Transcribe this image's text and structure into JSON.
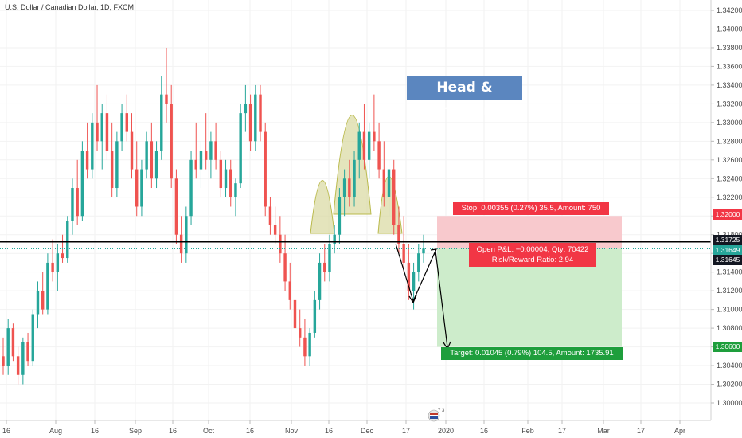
{
  "header": {
    "title": "U.S. Dollar / Canadian Dollar, 1D, FXCM"
  },
  "annotation": {
    "title": "Head & Sholders"
  },
  "position": {
    "stop_label": "Stop: 0.00355 (0.27%) 35.5, Amount: 750",
    "pnl_label_line1": "Open P&L: −0.00004, Qty: 70422",
    "pnl_label_line2": "Risk/Reward Ratio: 2.94",
    "target_label": "Target: 0.01045 (0.79%) 104.5, Amount: 1735.91"
  },
  "price_tags": {
    "stop": "1.32000",
    "level": "1.31725",
    "entry": "1.31649",
    "current": "1.31645",
    "target": "1.30600"
  },
  "colors": {
    "up": "#26a69a",
    "down": "#ef5350",
    "stop_zone": "#f8c9cd",
    "target_zone": "#cdeccb",
    "shoulder_fill": "#d8d9a0",
    "title_box": "#5b86bf"
  },
  "chart_data": {
    "type": "candlestick",
    "y_ticks": [
      "1.34200",
      "1.34000",
      "1.33800",
      "1.33600",
      "1.33400",
      "1.33200",
      "1.33000",
      "1.32800",
      "1.32600",
      "1.32400",
      "1.32200",
      "1.32000",
      "1.31800",
      "1.31600",
      "1.31400",
      "1.31200",
      "1.31000",
      "1.30800",
      "1.30600",
      "1.30400",
      "1.30200",
      "1.30000"
    ],
    "x_ticks": [
      "16",
      "Aug",
      "16",
      "Sep",
      "16",
      "Oct",
      "16",
      "Nov",
      "16",
      "Dec",
      "17",
      "2020",
      "16",
      "Feb",
      "17",
      "Mar",
      "17",
      "Apr"
    ],
    "ylim": [
      1.299,
      1.3425
    ],
    "levels": {
      "resistance": 1.31725,
      "entry": 1.31649,
      "stop": 1.32,
      "target": 1.306
    },
    "candles": [
      [
        1.305,
        1.307,
        1.303,
        1.304
      ],
      [
        1.304,
        1.309,
        1.303,
        1.308
      ],
      [
        1.308,
        1.3085,
        1.3045,
        1.305
      ],
      [
        1.305,
        1.306,
        1.302,
        1.303
      ],
      [
        1.303,
        1.307,
        1.302,
        1.3065
      ],
      [
        1.3065,
        1.3075,
        1.304,
        1.3045
      ],
      [
        1.3045,
        1.31,
        1.304,
        1.3095
      ],
      [
        1.3095,
        1.313,
        1.308,
        1.312
      ],
      [
        1.312,
        1.314,
        1.3095,
        1.31
      ],
      [
        1.31,
        1.316,
        1.3095,
        1.315
      ],
      [
        1.315,
        1.3175,
        1.313,
        1.314
      ],
      [
        1.314,
        1.317,
        1.312,
        1.316
      ],
      [
        1.316,
        1.318,
        1.315,
        1.3155
      ],
      [
        1.3155,
        1.32,
        1.315,
        1.3195
      ],
      [
        1.3195,
        1.324,
        1.318,
        1.323
      ],
      [
        1.323,
        1.326,
        1.319,
        1.32
      ],
      [
        1.32,
        1.328,
        1.3195,
        1.327
      ],
      [
        1.327,
        1.33,
        1.324,
        1.325
      ],
      [
        1.325,
        1.331,
        1.324,
        1.33
      ],
      [
        1.33,
        1.334,
        1.327,
        1.328
      ],
      [
        1.328,
        1.332,
        1.325,
        1.331
      ],
      [
        1.331,
        1.333,
        1.326,
        1.327
      ],
      [
        1.327,
        1.33,
        1.322,
        1.323
      ],
      [
        1.323,
        1.329,
        1.322,
        1.328
      ],
      [
        1.328,
        1.332,
        1.327,
        1.331
      ],
      [
        1.331,
        1.333,
        1.328,
        1.329
      ],
      [
        1.329,
        1.331,
        1.324,
        1.325
      ],
      [
        1.325,
        1.328,
        1.32,
        1.321
      ],
      [
        1.321,
        1.326,
        1.32,
        1.325
      ],
      [
        1.325,
        1.329,
        1.324,
        1.328
      ],
      [
        1.328,
        1.33,
        1.323,
        1.324
      ],
      [
        1.324,
        1.328,
        1.323,
        1.327
      ],
      [
        1.327,
        1.335,
        1.326,
        1.333
      ],
      [
        1.333,
        1.338,
        1.33,
        1.332
      ],
      [
        1.332,
        1.334,
        1.323,
        1.324
      ],
      [
        1.324,
        1.325,
        1.317,
        1.318
      ],
      [
        1.318,
        1.32,
        1.315,
        1.316
      ],
      [
        1.316,
        1.321,
        1.315,
        1.32
      ],
      [
        1.32,
        1.327,
        1.319,
        1.326
      ],
      [
        1.326,
        1.33,
        1.324,
        1.325
      ],
      [
        1.325,
        1.328,
        1.323,
        1.327
      ],
      [
        1.327,
        1.331,
        1.325,
        1.326
      ],
      [
        1.326,
        1.329,
        1.324,
        1.328
      ],
      [
        1.328,
        1.33,
        1.325,
        1.326
      ],
      [
        1.326,
        1.327,
        1.322,
        1.323
      ],
      [
        1.323,
        1.326,
        1.322,
        1.325
      ],
      [
        1.325,
        1.326,
        1.321,
        1.322
      ],
      [
        1.322,
        1.324,
        1.32,
        1.3235
      ],
      [
        1.3235,
        1.332,
        1.323,
        1.331
      ],
      [
        1.331,
        1.334,
        1.329,
        1.332
      ],
      [
        1.332,
        1.333,
        1.327,
        1.328
      ],
      [
        1.328,
        1.334,
        1.327,
        1.333
      ],
      [
        1.333,
        1.334,
        1.328,
        1.329
      ],
      [
        1.329,
        1.33,
        1.32,
        1.321
      ],
      [
        1.321,
        1.322,
        1.318,
        1.319
      ],
      [
        1.319,
        1.321,
        1.317,
        1.318
      ],
      [
        1.318,
        1.32,
        1.315,
        1.316
      ],
      [
        1.316,
        1.318,
        1.312,
        1.313
      ],
      [
        1.313,
        1.315,
        1.31,
        1.311
      ],
      [
        1.311,
        1.312,
        1.307,
        1.308
      ],
      [
        1.308,
        1.31,
        1.306,
        1.307
      ],
      [
        1.307,
        1.309,
        1.304,
        1.305
      ],
      [
        1.305,
        1.308,
        1.304,
        1.3075
      ],
      [
        1.3075,
        1.312,
        1.307,
        1.311
      ],
      [
        1.311,
        1.316,
        1.31,
        1.315
      ],
      [
        1.315,
        1.317,
        1.313,
        1.314
      ],
      [
        1.314,
        1.318,
        1.313,
        1.317
      ],
      [
        1.317,
        1.319,
        1.316,
        1.318
      ],
      [
        1.318,
        1.323,
        1.317,
        1.322
      ],
      [
        1.322,
        1.325,
        1.32,
        1.324
      ],
      [
        1.324,
        1.326,
        1.321,
        1.322
      ],
      [
        1.322,
        1.327,
        1.321,
        1.326
      ],
      [
        1.326,
        1.33,
        1.324,
        1.329
      ],
      [
        1.329,
        1.332,
        1.325,
        1.326
      ],
      [
        1.326,
        1.33,
        1.324,
        1.329
      ],
      [
        1.329,
        1.333,
        1.327,
        1.328
      ],
      [
        1.328,
        1.33,
        1.324,
        1.325
      ],
      [
        1.325,
        1.328,
        1.321,
        1.322
      ],
      [
        1.322,
        1.326,
        1.32,
        1.325
      ],
      [
        1.325,
        1.326,
        1.318,
        1.319
      ],
      [
        1.319,
        1.321,
        1.316,
        1.317
      ],
      [
        1.317,
        1.32,
        1.314,
        1.315
      ],
      [
        1.315,
        1.317,
        1.311,
        1.312
      ],
      [
        1.312,
        1.315,
        1.31,
        1.314
      ],
      [
        1.314,
        1.317,
        1.313,
        1.316
      ],
      [
        1.316,
        1.318,
        1.315,
        1.3165
      ]
    ]
  }
}
